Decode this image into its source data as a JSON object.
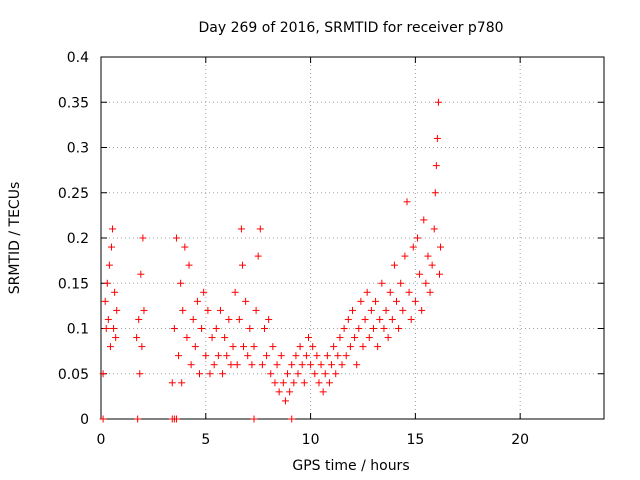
{
  "chart_data": {
    "type": "scatter",
    "title": "Day 269 of 2016, SRMTID for receiver p780",
    "xlabel": "GPS time / hours",
    "ylabel": "SRMTID / TECUs",
    "xlim": [
      0,
      24
    ],
    "ylim": [
      0,
      0.4
    ],
    "x_ticks": [
      "0",
      "5",
      "10",
      "15",
      "20"
    ],
    "y_ticks": [
      "0",
      "0.05",
      "0.1",
      "0.15",
      "0.2",
      "0.25",
      "0.3",
      "0.35",
      "0.4"
    ],
    "grid": true,
    "marker": "+",
    "color": "#ff0000",
    "series": [
      {
        "name": "",
        "points": [
          [
            0.1,
            0.05
          ],
          [
            0.2,
            0.13
          ],
          [
            0.25,
            0.1
          ],
          [
            0.3,
            0.15
          ],
          [
            0.35,
            0.11
          ],
          [
            0.4,
            0.17
          ],
          [
            0.45,
            0.08
          ],
          [
            0.5,
            0.19
          ],
          [
            0.55,
            0.21
          ],
          [
            0.6,
            0.1
          ],
          [
            0.65,
            0.14
          ],
          [
            0.7,
            0.09
          ],
          [
            0.75,
            0.12
          ],
          [
            1.7,
            0.09
          ],
          [
            1.8,
            0.11
          ],
          [
            1.85,
            0.05
          ],
          [
            1.9,
            0.16
          ],
          [
            1.95,
            0.08
          ],
          [
            2.0,
            0.2
          ],
          [
            2.05,
            0.12
          ],
          [
            3.4,
            0.04
          ],
          [
            3.5,
            0.1
          ],
          [
            3.6,
            0.2
          ],
          [
            3.7,
            0.07
          ],
          [
            3.8,
            0.15
          ],
          [
            3.85,
            0.04
          ],
          [
            3.9,
            0.12
          ],
          [
            4.0,
            0.19
          ],
          [
            4.1,
            0.09
          ],
          [
            4.2,
            0.17
          ],
          [
            4.3,
            0.06
          ],
          [
            4.4,
            0.11
          ],
          [
            4.5,
            0.08
          ],
          [
            4.6,
            0.13
          ],
          [
            4.7,
            0.05
          ],
          [
            4.8,
            0.1
          ],
          [
            4.9,
            0.14
          ],
          [
            5.0,
            0.07
          ],
          [
            5.1,
            0.12
          ],
          [
            5.2,
            0.05
          ],
          [
            5.3,
            0.09
          ],
          [
            5.4,
            0.06
          ],
          [
            5.5,
            0.1
          ],
          [
            5.6,
            0.07
          ],
          [
            5.7,
            0.12
          ],
          [
            5.8,
            0.05
          ],
          [
            5.9,
            0.09
          ],
          [
            6.0,
            0.07
          ],
          [
            6.1,
            0.11
          ],
          [
            6.2,
            0.06
          ],
          [
            6.3,
            0.08
          ],
          [
            6.4,
            0.14
          ],
          [
            6.5,
            0.06
          ],
          [
            6.6,
            0.11
          ],
          [
            6.7,
            0.21
          ],
          [
            6.75,
            0.17
          ],
          [
            6.8,
            0.08
          ],
          [
            6.9,
            0.13
          ],
          [
            7.0,
            0.07
          ],
          [
            7.1,
            0.1
          ],
          [
            7.2,
            0.06
          ],
          [
            7.3,
            0.08
          ],
          [
            7.4,
            0.12
          ],
          [
            7.5,
            0.18
          ],
          [
            7.6,
            0.21
          ],
          [
            7.7,
            0.06
          ],
          [
            7.8,
            0.1
          ],
          [
            7.9,
            0.07
          ],
          [
            8.0,
            0.11
          ],
          [
            8.1,
            0.05
          ],
          [
            8.2,
            0.08
          ],
          [
            8.3,
            0.04
          ],
          [
            8.4,
            0.06
          ],
          [
            8.5,
            0.03
          ],
          [
            8.6,
            0.07
          ],
          [
            8.7,
            0.04
          ],
          [
            8.8,
            0.02
          ],
          [
            8.9,
            0.05
          ],
          [
            9.0,
            0.03
          ],
          [
            9.1,
            0.06
          ],
          [
            9.2,
            0.04
          ],
          [
            9.3,
            0.07
          ],
          [
            9.4,
            0.05
          ],
          [
            9.5,
            0.08
          ],
          [
            9.6,
            0.06
          ],
          [
            9.7,
            0.04
          ],
          [
            9.8,
            0.07
          ],
          [
            9.9,
            0.09
          ],
          [
            10.0,
            0.06
          ],
          [
            10.1,
            0.08
          ],
          [
            10.2,
            0.05
          ],
          [
            10.3,
            0.07
          ],
          [
            10.4,
            0.04
          ],
          [
            10.5,
            0.06
          ],
          [
            10.6,
            0.03
          ],
          [
            10.7,
            0.05
          ],
          [
            10.8,
            0.07
          ],
          [
            10.9,
            0.04
          ],
          [
            11.0,
            0.06
          ],
          [
            11.1,
            0.08
          ],
          [
            11.2,
            0.05
          ],
          [
            11.3,
            0.07
          ],
          [
            11.4,
            0.09
          ],
          [
            11.5,
            0.06
          ],
          [
            11.6,
            0.1
          ],
          [
            11.7,
            0.07
          ],
          [
            11.8,
            0.11
          ],
          [
            11.9,
            0.08
          ],
          [
            12.0,
            0.12
          ],
          [
            12.1,
            0.09
          ],
          [
            12.2,
            0.06
          ],
          [
            12.3,
            0.1
          ],
          [
            12.4,
            0.13
          ],
          [
            12.5,
            0.08
          ],
          [
            12.6,
            0.11
          ],
          [
            12.7,
            0.14
          ],
          [
            12.8,
            0.09
          ],
          [
            12.9,
            0.12
          ],
          [
            13.0,
            0.1
          ],
          [
            13.1,
            0.13
          ],
          [
            13.2,
            0.08
          ],
          [
            13.3,
            0.11
          ],
          [
            13.4,
            0.15
          ],
          [
            13.5,
            0.1
          ],
          [
            13.6,
            0.12
          ],
          [
            13.7,
            0.09
          ],
          [
            13.8,
            0.14
          ],
          [
            13.9,
            0.11
          ],
          [
            14.0,
            0.17
          ],
          [
            14.1,
            0.13
          ],
          [
            14.2,
            0.1
          ],
          [
            14.3,
            0.15
          ],
          [
            14.4,
            0.12
          ],
          [
            14.5,
            0.18
          ],
          [
            14.6,
            0.24
          ],
          [
            14.7,
            0.14
          ],
          [
            14.8,
            0.11
          ],
          [
            14.9,
            0.19
          ],
          [
            15.0,
            0.13
          ],
          [
            15.1,
            0.2
          ],
          [
            15.2,
            0.16
          ],
          [
            15.3,
            0.12
          ],
          [
            15.4,
            0.22
          ],
          [
            15.5,
            0.15
          ],
          [
            15.6,
            0.18
          ],
          [
            15.7,
            0.14
          ],
          [
            15.8,
            0.17
          ],
          [
            15.9,
            0.21
          ],
          [
            15.95,
            0.25
          ],
          [
            16.0,
            0.28
          ],
          [
            16.05,
            0.31
          ],
          [
            16.1,
            0.35
          ],
          [
            16.15,
            0.16
          ],
          [
            16.2,
            0.19
          ]
        ]
      }
    ],
    "zero_points_x": [
      0.1,
      1.75,
      3.4,
      3.5,
      3.6,
      7.3,
      9.1
    ]
  }
}
